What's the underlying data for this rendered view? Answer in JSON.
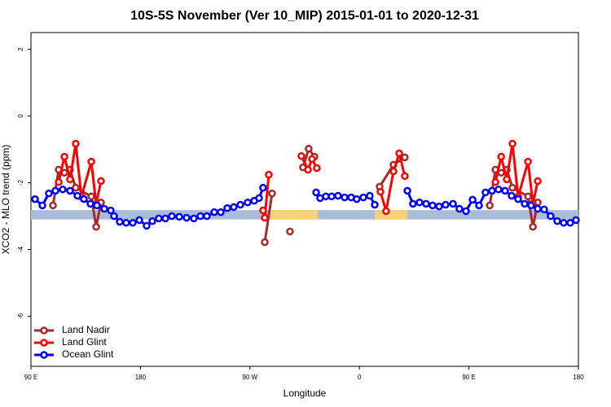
{
  "chart_data": {
    "type": "line",
    "title": "10S-5S November (Ver 10_MIP)   2015-01-01 to 2020-12-31",
    "x_label": "Longitude",
    "y_label": "XCO2 - MLO trend (ppm)",
    "xlim": [
      90,
      540
    ],
    "ylim": [
      -7.5,
      2.5
    ],
    "xticks": [
      {
        "value": 90,
        "label": "90 E"
      },
      {
        "value": 180,
        "label": "180"
      },
      {
        "value": 270,
        "label": "90 W"
      },
      {
        "value": 360,
        "label": "0"
      },
      {
        "value": 450,
        "label": "90 E"
      },
      {
        "value": 540,
        "label": "180"
      }
    ],
    "yticks": [
      -6,
      -4,
      -2,
      0,
      2
    ],
    "legend": "bottom-left",
    "band": {
      "ylim": [
        -3.1,
        -2.82
      ],
      "color": "#a9bcd8",
      "segments": [
        {
          "xlim": [
            285.6,
            325.8
          ],
          "color": "#f7d27a"
        },
        {
          "xlim": [
            372.6,
            399.4
          ],
          "color": "#f7d27a"
        }
      ]
    },
    "series": [
      {
        "name": "Land Nadir",
        "color": "#a52a2a",
        "x": [
          108.1,
          112.8,
          117.5,
          122.1,
          126.8,
          139.6,
          143.6,
          147.6,
          null,
          282.2,
          288.2,
          null,
          302.9,
          null,
          313.6,
          318.3,
          323.0,
          null,
          376.6,
          388.0,
          397.3,
          null,
          467.1,
          471.8,
          476.5,
          481.1,
          485.8,
          498.6,
          502.6,
          506.6
        ],
        "values": [
          -2.68,
          -1.61,
          -1.7,
          -1.61,
          -2.15,
          -2.41,
          -3.32,
          -2.59,
          null,
          -3.78,
          -2.32,
          null,
          -3.46,
          null,
          -1.54,
          -0.98,
          -1.22,
          null,
          -2.12,
          -1.46,
          -1.24,
          null,
          -2.68,
          -1.61,
          -1.7,
          -1.61,
          -2.15,
          -2.41,
          -3.32,
          -2.59
        ]
      },
      {
        "name": "Land Glint",
        "color": "#ff0000",
        "x": [
          112.8,
          117.5,
          122.1,
          126.8,
          131.5,
          139.6,
          143.6,
          147.6,
          null,
          280.8,
          282.2,
          285.5,
          null,
          312.3,
          317.7,
          321.0,
          325.0,
          null,
          377.3,
          381.9,
          388.0,
          392.7,
          397.3,
          null,
          471.8,
          476.5,
          481.1,
          485.8,
          490.5,
          498.6,
          502.6,
          506.6
        ],
        "values": [
          -1.98,
          -1.22,
          -1.9,
          -0.83,
          -2.42,
          -1.37,
          -2.63,
          -1.95,
          null,
          -2.83,
          -3.05,
          -1.76,
          null,
          -1.2,
          -1.61,
          -1.29,
          -1.56,
          null,
          -2.27,
          -2.85,
          -1.66,
          -1.12,
          -1.8,
          null,
          -1.98,
          -1.22,
          -1.9,
          -0.83,
          -2.42,
          -1.37,
          -2.63,
          -1.95
        ]
      },
      {
        "name": "Ocean Glint",
        "color": "#0000ff",
        "x": [
          93.3,
          99.4,
          104.7,
          110.1,
          116.1,
          122.1,
          128.2,
          133.5,
          138.9,
          144.2,
          150.3,
          155.6,
          158.3,
          163.0,
          168.3,
          173.7,
          179.1,
          185.1,
          189.8,
          195.1,
          200.5,
          205.8,
          211.9,
          217.9,
          223.9,
          229.3,
          234.6,
          240.7,
          246.0,
          251.4,
          256.7,
          262.1,
          268.1,
          273.5,
          277.5,
          280.8,
          null,
          324.4,
          327.7,
          332.4,
          337.1,
          342.4,
          347.8,
          353.2,
          357.8,
          363.2,
          368.5,
          372.6,
          null,
          399.4,
          404.0,
          409.4,
          414.8,
          420.1,
          425.5,
          430.8,
          436.9,
          442.2,
          447.6,
          453.0,
          458.3,
          463.6,
          469.0,
          474.3,
          479.7,
          485.1,
          490.4,
          495.8,
          501.1,
          506.5,
          511.8,
          517.2,
          522.6,
          527.9,
          533.3,
          538.0
        ],
        "values": [
          -2.49,
          -2.68,
          -2.32,
          -2.24,
          -2.2,
          -2.24,
          -2.39,
          -2.49,
          -2.63,
          -2.68,
          -2.78,
          -2.83,
          -3.0,
          -3.17,
          -3.2,
          -3.2,
          -3.12,
          -3.29,
          -3.15,
          -3.07,
          -3.07,
          -3.0,
          -3.02,
          -3.05,
          -3.07,
          -3.0,
          -3.0,
          -2.88,
          -2.88,
          -2.76,
          -2.73,
          -2.66,
          -2.59,
          -2.54,
          -2.46,
          -2.15,
          null,
          -2.29,
          -2.46,
          -2.41,
          -2.41,
          -2.39,
          -2.44,
          -2.44,
          -2.49,
          -2.44,
          -2.39,
          -2.66,
          null,
          -2.24,
          -2.63,
          -2.59,
          -2.63,
          -2.68,
          -2.71,
          -2.66,
          -2.63,
          -2.78,
          -2.85,
          -2.51,
          -2.68,
          -2.29,
          -2.24,
          -2.2,
          -2.24,
          -2.39,
          -2.49,
          -2.63,
          -2.68,
          -2.78,
          -2.8,
          -3.0,
          -3.15,
          -3.2,
          -3.2,
          -3.12
        ]
      }
    ]
  }
}
